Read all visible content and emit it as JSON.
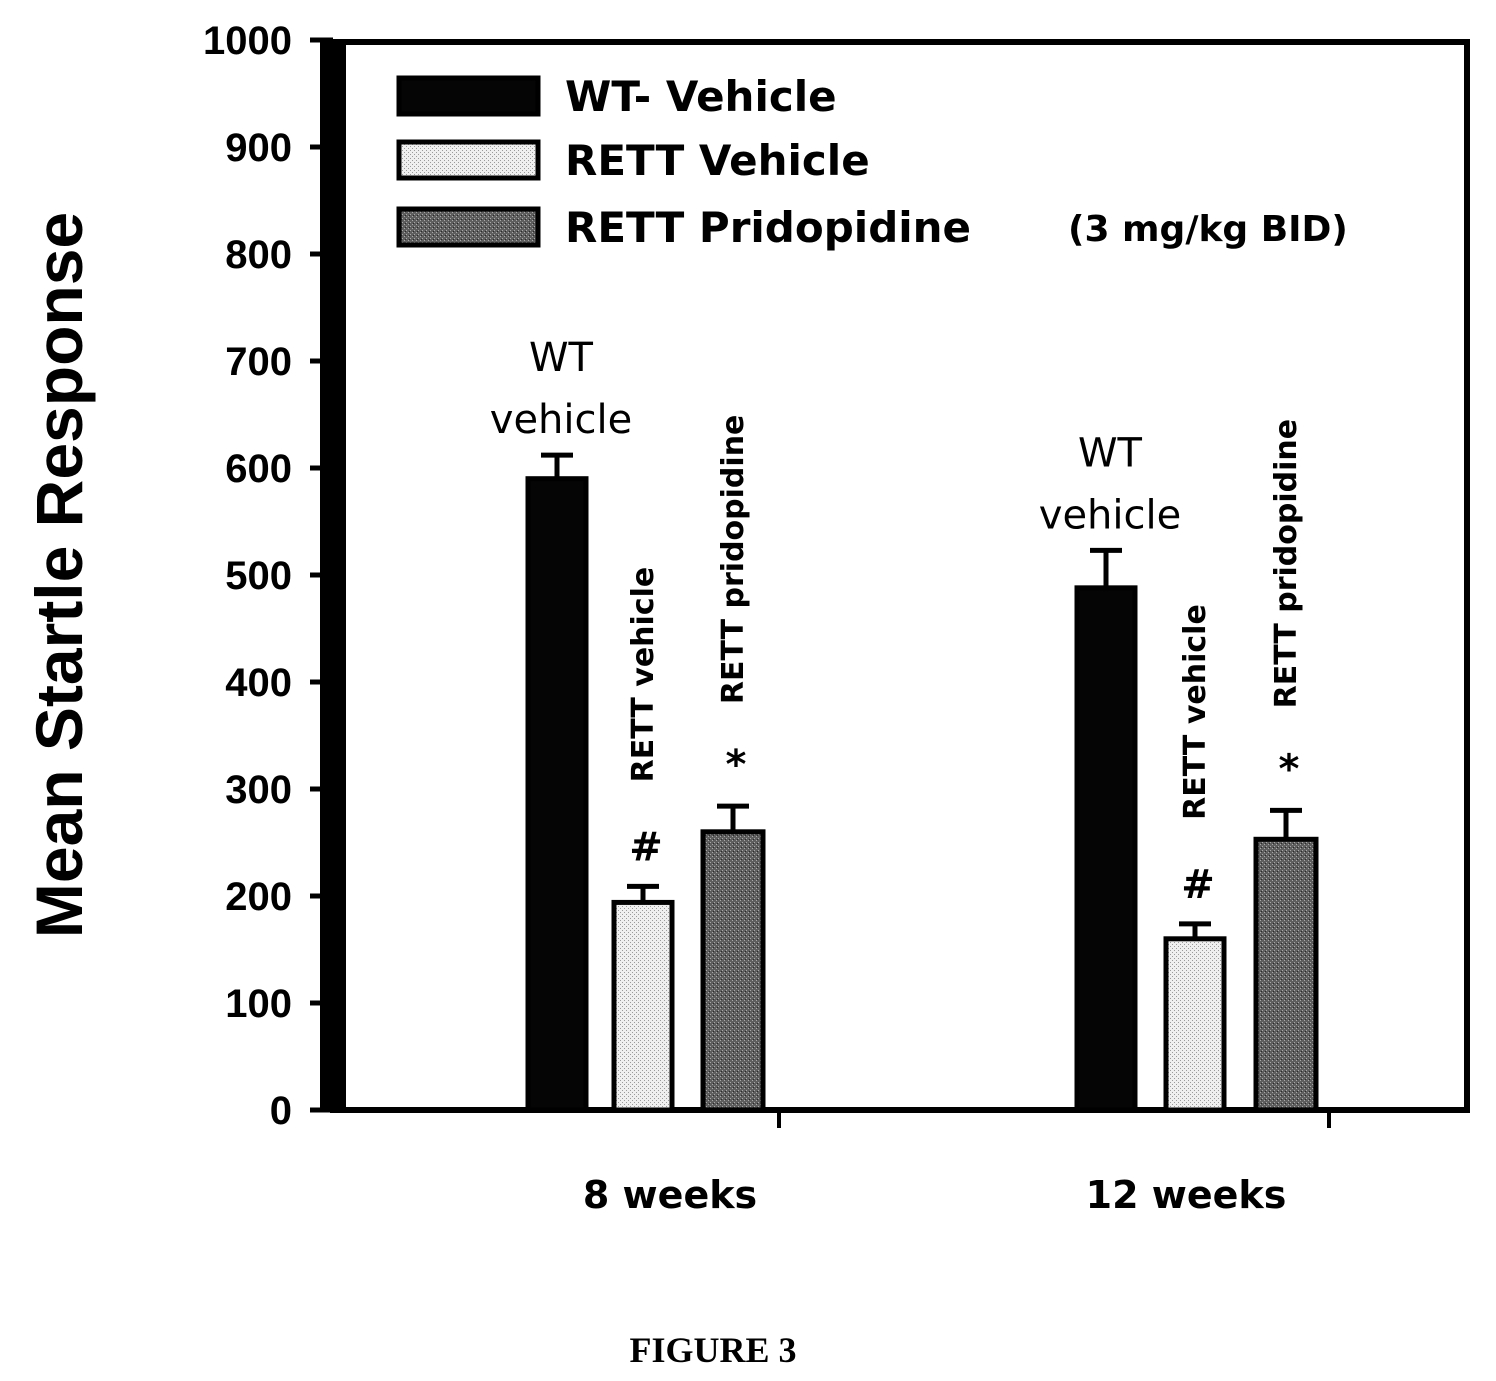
{
  "chart_data": {
    "type": "bar",
    "ylabel": "Mean Startle Response",
    "ylim": [
      0,
      1000
    ],
    "yticks": [
      0,
      100,
      200,
      300,
      400,
      500,
      600,
      700,
      800,
      900,
      1000
    ],
    "categories": [
      "8 weeks",
      "12 weeks"
    ],
    "series": [
      {
        "name": "WT- Vehicle",
        "fill": "#050505",
        "values": [
          590,
          488
        ],
        "errors": [
          22,
          35
        ]
      },
      {
        "name": "RETT  Vehicle",
        "note": "",
        "fill": "#e6e6e6",
        "values": [
          194,
          160
        ],
        "errors": [
          15,
          14
        ]
      },
      {
        "name": "RETT Pridopidine",
        "note": "(3 mg/kg BID)",
        "fill": "#6a6a6a",
        "values": [
          260,
          253
        ],
        "errors": [
          24,
          27
        ]
      }
    ],
    "bar_annotations": [
      {
        "group": 0,
        "series": 0,
        "text": "WT\nvehicle",
        "orientation": "horizontal"
      },
      {
        "group": 0,
        "series": 1,
        "text": "RETT vehicle",
        "orientation": "vertical"
      },
      {
        "group": 0,
        "series": 2,
        "text": "RETT pridopidine",
        "orientation": "vertical"
      },
      {
        "group": 1,
        "series": 0,
        "text": "WT\nvehicle",
        "orientation": "horizontal"
      },
      {
        "group": 1,
        "series": 1,
        "text": "RETT vehicle",
        "orientation": "vertical"
      },
      {
        "group": 1,
        "series": 2,
        "text": "RETT pridopidine",
        "orientation": "vertical"
      }
    ],
    "significance_marks": [
      {
        "group": 0,
        "series": 1,
        "text": "#"
      },
      {
        "group": 0,
        "series": 2,
        "text": "*"
      },
      {
        "group": 1,
        "series": 1,
        "text": "#"
      },
      {
        "group": 1,
        "series": 2,
        "text": "*"
      }
    ],
    "legend_position": "top-left",
    "grid": false
  },
  "caption": "FIGURE 3"
}
